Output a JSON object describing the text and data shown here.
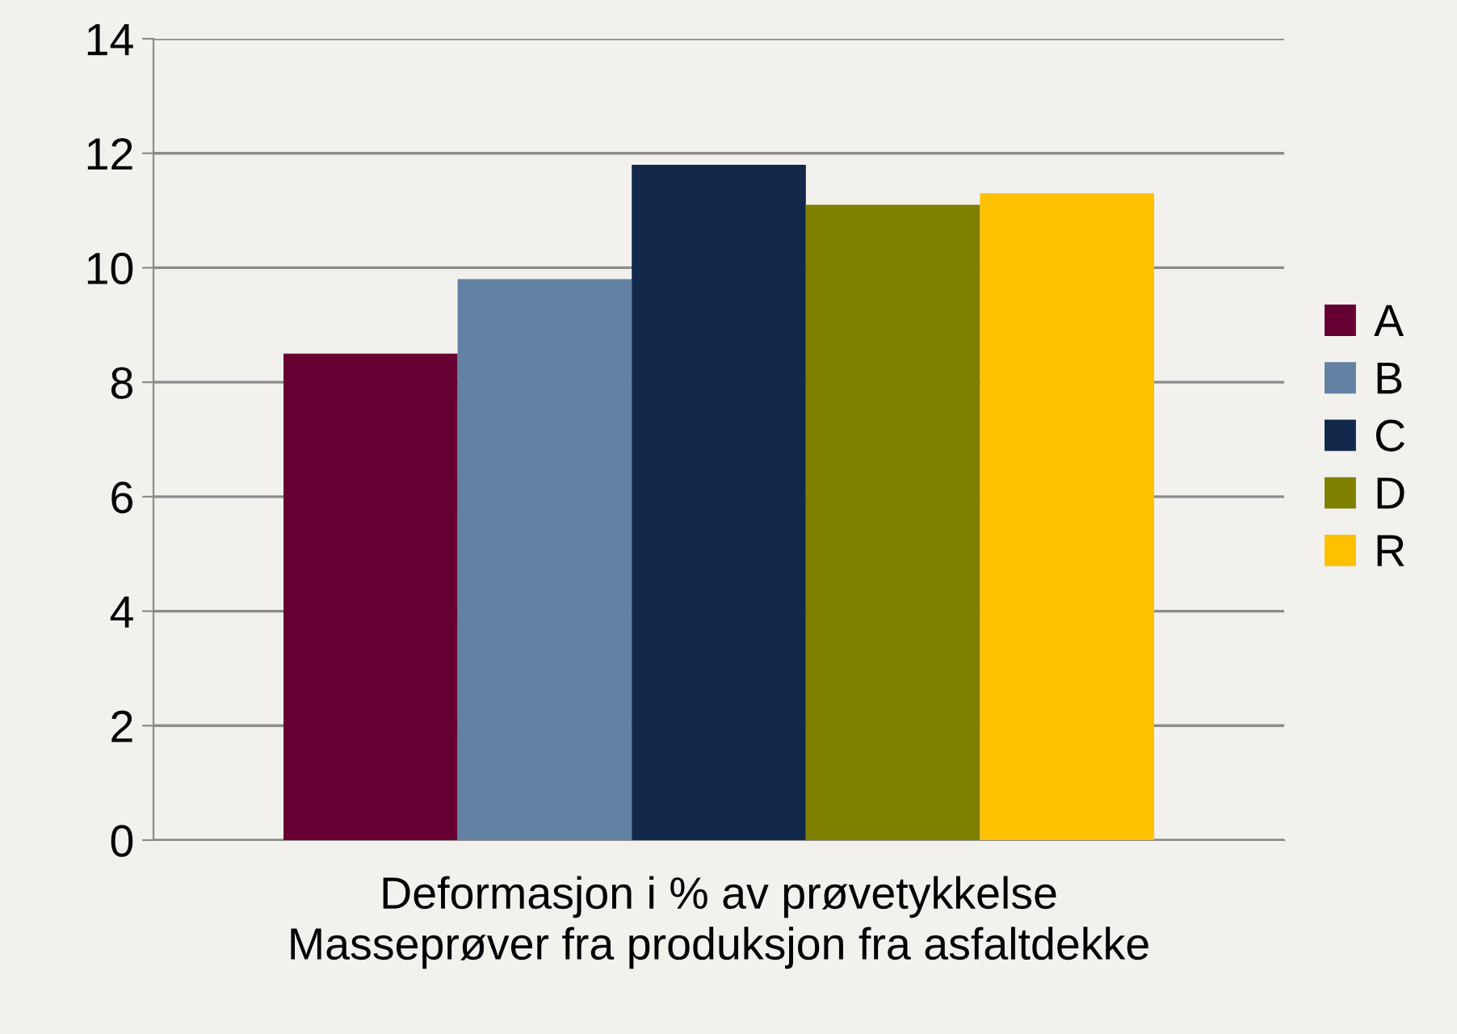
{
  "chart_data": {
    "type": "bar",
    "categories": [
      "Deformasjon i % av prøvetykkelse"
    ],
    "xlabel": "Masseprøver fra produksjon fra asfaltdekke",
    "series": [
      {
        "name": "A",
        "color": "#660033",
        "values": [
          8.5
        ]
      },
      {
        "name": "B",
        "color": "#6381a2",
        "values": [
          9.8
        ]
      },
      {
        "name": "C",
        "color": "#12284b",
        "values": [
          11.8
        ]
      },
      {
        "name": "D",
        "color": "#7f7f00",
        "values": [
          11.1
        ]
      },
      {
        "name": "R",
        "color": "#ffc000",
        "values": [
          11.3
        ]
      }
    ],
    "ylim": [
      0,
      14
    ],
    "yticks": [
      0,
      2,
      4,
      6,
      8,
      10,
      12,
      14
    ],
    "grid": "y",
    "legend": "right"
  }
}
